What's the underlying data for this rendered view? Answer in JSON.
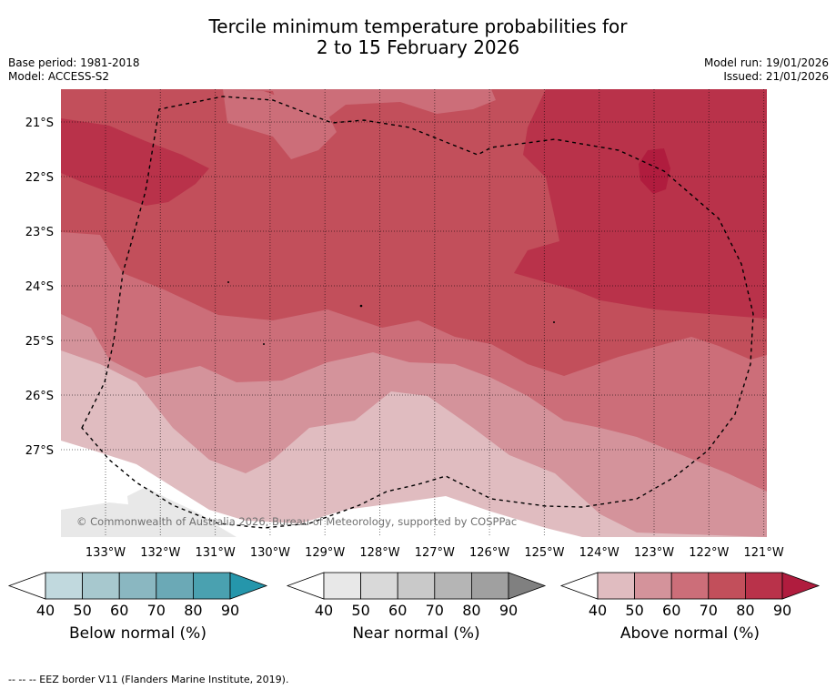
{
  "title": {
    "line1": "Tercile minimum temperature probabilities for",
    "line2": "2 to 15 February 2026"
  },
  "meta": {
    "base_period": "Base period: 1981-2018",
    "model": "Model: ACCESS-S2",
    "model_run": "Model run: 19/01/2026",
    "issued": "Issued: 21/01/2026"
  },
  "map": {
    "copyright": "© Commonwealth of Australia 2026, Bureau of Meteorology, supported by COSPPac",
    "lat_labels": [
      "21°S",
      "22°S",
      "23°S",
      "24°S",
      "25°S",
      "26°S",
      "27°S"
    ],
    "lon_labels": [
      "133°W",
      "132°W",
      "131°W",
      "130°W",
      "129°W",
      "128°W",
      "127°W",
      "126°W",
      "125°W",
      "124°W",
      "123°W",
      "122°W",
      "121°W"
    ],
    "eez_border": "dashed",
    "colors": {
      "land": "#ffffff",
      "near_normal_40": "#e8e8e8",
      "above_40": "#e0bcc0",
      "above_50": "#d4939b",
      "above_60": "#cc6e79",
      "above_70": "#c24f5b",
      "above_80": "#b9324a",
      "above_90": "#b01c3e"
    }
  },
  "colorbars": [
    {
      "label": "Below normal (%)",
      "ticks": [
        "40",
        "50",
        "60",
        "70",
        "80",
        "90"
      ],
      "colors": [
        "#c1d9de",
        "#a7c8ce",
        "#8ab7c1",
        "#6ba9b6",
        "#4aa1b0"
      ],
      "extend_color": "#2596ab"
    },
    {
      "label": "Near normal (%)",
      "ticks": [
        "40",
        "50",
        "60",
        "70",
        "80",
        "90"
      ],
      "colors": [
        "#e8e8e8",
        "#d9d9d9",
        "#c9c9c9",
        "#b5b5b5",
        "#a0a0a0"
      ],
      "extend_color": "#808080"
    },
    {
      "label": "Above normal (%)",
      "ticks": [
        "40",
        "50",
        "60",
        "70",
        "80",
        "90"
      ],
      "colors": [
        "#e0bcc0",
        "#d4939b",
        "#cc6e79",
        "#c24f5b",
        "#b9324a"
      ],
      "extend_color": "#b01c3e"
    }
  ],
  "footnote": "-- -- -- EEZ border V11 (Flanders Marine Institute, 2019)."
}
